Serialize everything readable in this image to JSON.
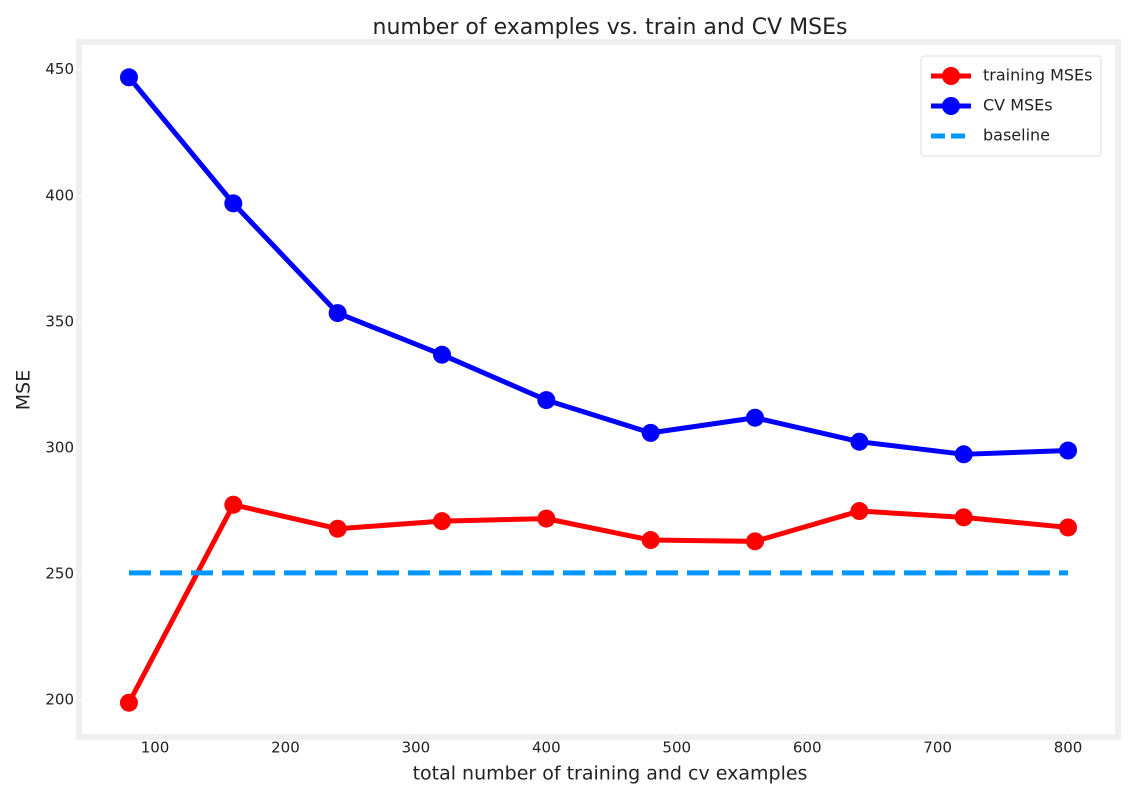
{
  "chart_data": {
    "type": "line",
    "title": "number of examples vs. train and CV MSEs",
    "xlabel": "total number of training and cv examples",
    "ylabel": "MSE",
    "x": [
      80,
      160,
      240,
      320,
      400,
      480,
      560,
      640,
      720,
      800
    ],
    "series": [
      {
        "name": "training MSEs",
        "color": "#ff0000",
        "marker": "o",
        "linestyle": "solid",
        "values": [
          199,
          277.5,
          268,
          271,
          272,
          263.5,
          263,
          275,
          272.5,
          268.5
        ]
      },
      {
        "name": "CV MSEs",
        "color": "#0000ff",
        "marker": "o",
        "linestyle": "solid",
        "values": [
          447,
          397,
          353.5,
          337,
          319,
          306,
          312,
          302.5,
          297.5,
          299
        ]
      },
      {
        "name": "baseline",
        "color": "#0096ff",
        "linestyle": "dashed",
        "x": [
          80,
          800
        ],
        "values": [
          250.5,
          250.5
        ]
      }
    ],
    "xlim": [
      44,
      836
    ],
    "ylim": [
      186.6,
      459.4
    ],
    "xticks": [
      100,
      200,
      300,
      400,
      500,
      600,
      700,
      800
    ],
    "yticks": [
      200,
      250,
      300,
      350,
      400,
      450
    ],
    "grid": false,
    "legend": "upper right"
  }
}
